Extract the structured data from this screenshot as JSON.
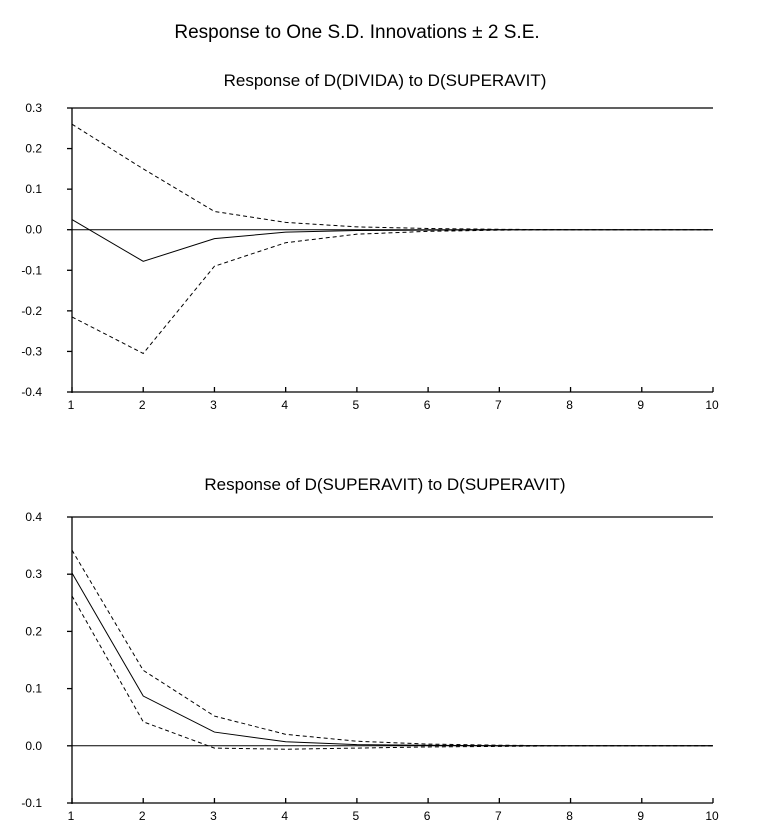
{
  "figure_title": "Response to One S.D. Innovations ± 2 S.E.",
  "chart_data": [
    {
      "type": "line",
      "title": "Response of D(DIVIDA) to D(SUPERAVIT)",
      "xlabel": "",
      "ylabel": "",
      "x": [
        1,
        2,
        3,
        4,
        5,
        6,
        7,
        8,
        9,
        10
      ],
      "xticks": [
        1,
        2,
        3,
        4,
        5,
        6,
        7,
        8,
        9,
        10
      ],
      "xtick_labels": [
        "1",
        "2",
        "3",
        "4",
        "5",
        "6",
        "7",
        "8",
        "9",
        "10"
      ],
      "ylim": [
        -0.4,
        0.3
      ],
      "yticks": [
        -0.4,
        -0.3,
        -0.2,
        -0.1,
        0.0,
        0.1,
        0.2,
        0.3
      ],
      "ytick_labels": [
        "-0.4",
        "-0.3",
        "-0.2",
        "-0.1",
        "0.0",
        "0.1",
        "0.2",
        "0.3"
      ],
      "grid": false,
      "zero_line": true,
      "series": [
        {
          "style": "solid",
          "values": [
            0.025,
            -0.078,
            -0.022,
            -0.006,
            -0.002,
            -0.001,
            0.0,
            0.0,
            0.0,
            0.0
          ]
        },
        {
          "style": "dashed",
          "values": [
            0.26,
            0.15,
            0.045,
            0.018,
            0.007,
            0.003,
            0.001,
            0.0,
            0.0,
            0.0
          ]
        },
        {
          "style": "dashed",
          "values": [
            -0.215,
            -0.305,
            -0.09,
            -0.032,
            -0.011,
            -0.004,
            -0.001,
            0.0,
            0.0,
            0.0
          ]
        }
      ]
    },
    {
      "type": "line",
      "title": "Response of D(SUPERAVIT) to D(SUPERAVIT)",
      "xlabel": "",
      "ylabel": "",
      "x": [
        1,
        2,
        3,
        4,
        5,
        6,
        7,
        8,
        9,
        10
      ],
      "xticks": [
        1,
        2,
        3,
        4,
        5,
        6,
        7,
        8,
        9,
        10
      ],
      "xtick_labels": [
        "1",
        "2",
        "3",
        "4",
        "5",
        "6",
        "7",
        "8",
        "9",
        "10"
      ],
      "ylim": [
        -0.1,
        0.4
      ],
      "yticks": [
        -0.1,
        0.0,
        0.1,
        0.2,
        0.3,
        0.4
      ],
      "ytick_labels": [
        "-0.1",
        "0.0",
        "0.1",
        "0.2",
        "0.3",
        "0.4"
      ],
      "grid": false,
      "zero_line": true,
      "series": [
        {
          "style": "solid",
          "values": [
            0.302,
            0.087,
            0.024,
            0.007,
            0.002,
            0.001,
            0.0,
            0.0,
            0.0,
            0.0
          ]
        },
        {
          "style": "dashed",
          "values": [
            0.342,
            0.132,
            0.052,
            0.02,
            0.008,
            0.003,
            0.001,
            0.0,
            0.0,
            0.0
          ]
        },
        {
          "style": "dashed",
          "values": [
            0.262,
            0.042,
            -0.004,
            -0.006,
            -0.004,
            -0.002,
            -0.001,
            0.0,
            0.0,
            0.0
          ]
        }
      ]
    }
  ]
}
